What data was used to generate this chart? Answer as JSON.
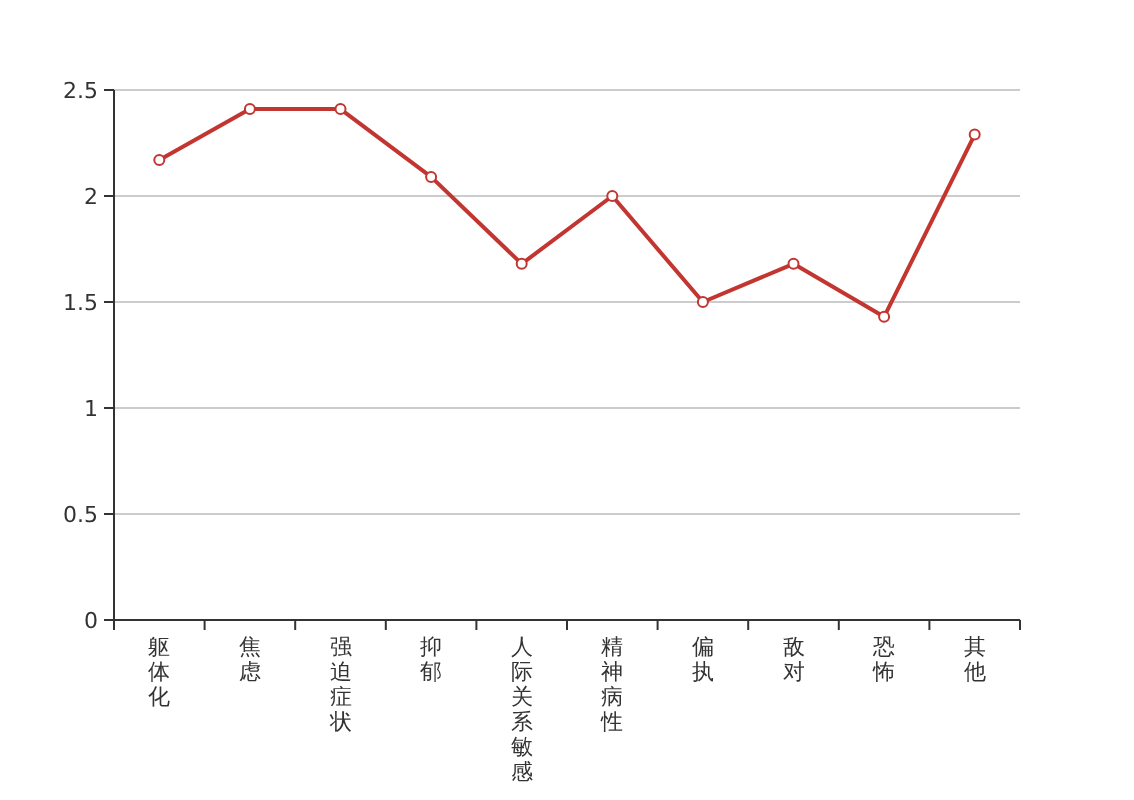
{
  "chart_data": {
    "type": "line",
    "categories": [
      "躯体化",
      "焦虑",
      "强迫症状",
      "抑郁",
      "人际关系敏感",
      "精神病性",
      "偏执",
      "敌对",
      "恐怖",
      "其他"
    ],
    "series": [
      {
        "color": "#c23531",
        "values": [
          2.17,
          2.41,
          2.41,
          2.09,
          1.68,
          2.0,
          1.5,
          1.68,
          1.43,
          2.29
        ]
      }
    ],
    "ylim": [
      0,
      2.5
    ],
    "yticks": [
      0,
      0.5,
      1,
      1.5,
      2,
      2.5
    ],
    "grid": "y",
    "marker": "circle",
    "line_style": "solid"
  }
}
